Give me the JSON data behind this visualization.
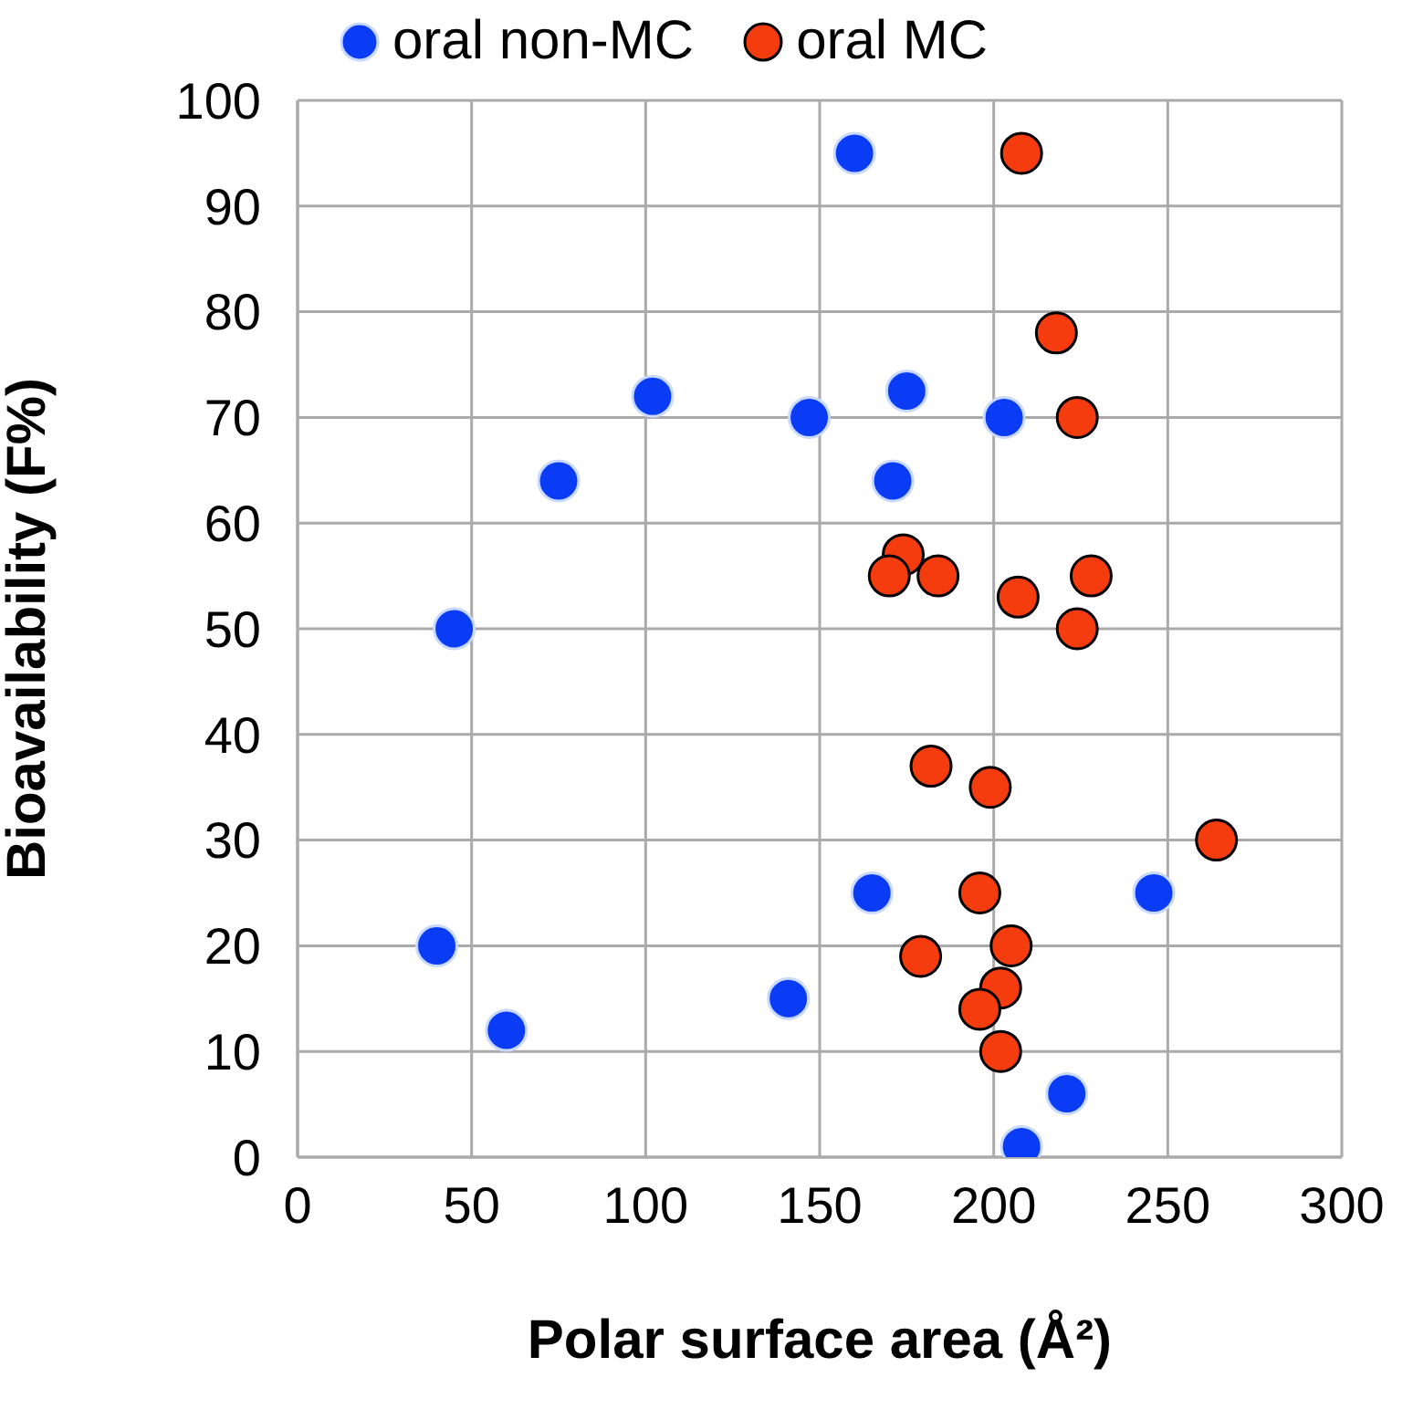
{
  "chart_data": {
    "type": "scatter",
    "xlabel": "Polar surface area (Å²)",
    "ylabel": "Bioavailability (F%)",
    "xlim": [
      0,
      300
    ],
    "xticks": [
      0,
      50,
      100,
      150,
      200,
      250,
      300
    ],
    "ylim": [
      0,
      100
    ],
    "yticks": [
      0,
      10,
      20,
      30,
      40,
      50,
      60,
      70,
      80,
      90,
      100
    ],
    "grid": true,
    "legend": "top",
    "marker": "circle",
    "series": [
      {
        "name": "oral non-MC",
        "color": "#0a3cf5",
        "x": [
          160,
          40,
          60,
          45,
          75,
          102,
          147,
          171,
          175,
          203,
          165,
          141,
          246,
          221,
          208
        ],
        "values": [
          95,
          20,
          12,
          50,
          64,
          72,
          70,
          64,
          72.5,
          70,
          25,
          15,
          25,
          6,
          1
        ]
      },
      {
        "name": "oral MC",
        "color": "#f53c0f",
        "x": [
          208,
          218,
          224,
          174,
          170,
          184,
          207,
          228,
          224,
          182,
          199,
          264,
          196,
          179,
          205,
          202,
          196,
          202
        ],
        "values": [
          95,
          78,
          70,
          57,
          55,
          55,
          53,
          55,
          50,
          37,
          35,
          30,
          25,
          19,
          20,
          16,
          14,
          10
        ]
      }
    ]
  }
}
